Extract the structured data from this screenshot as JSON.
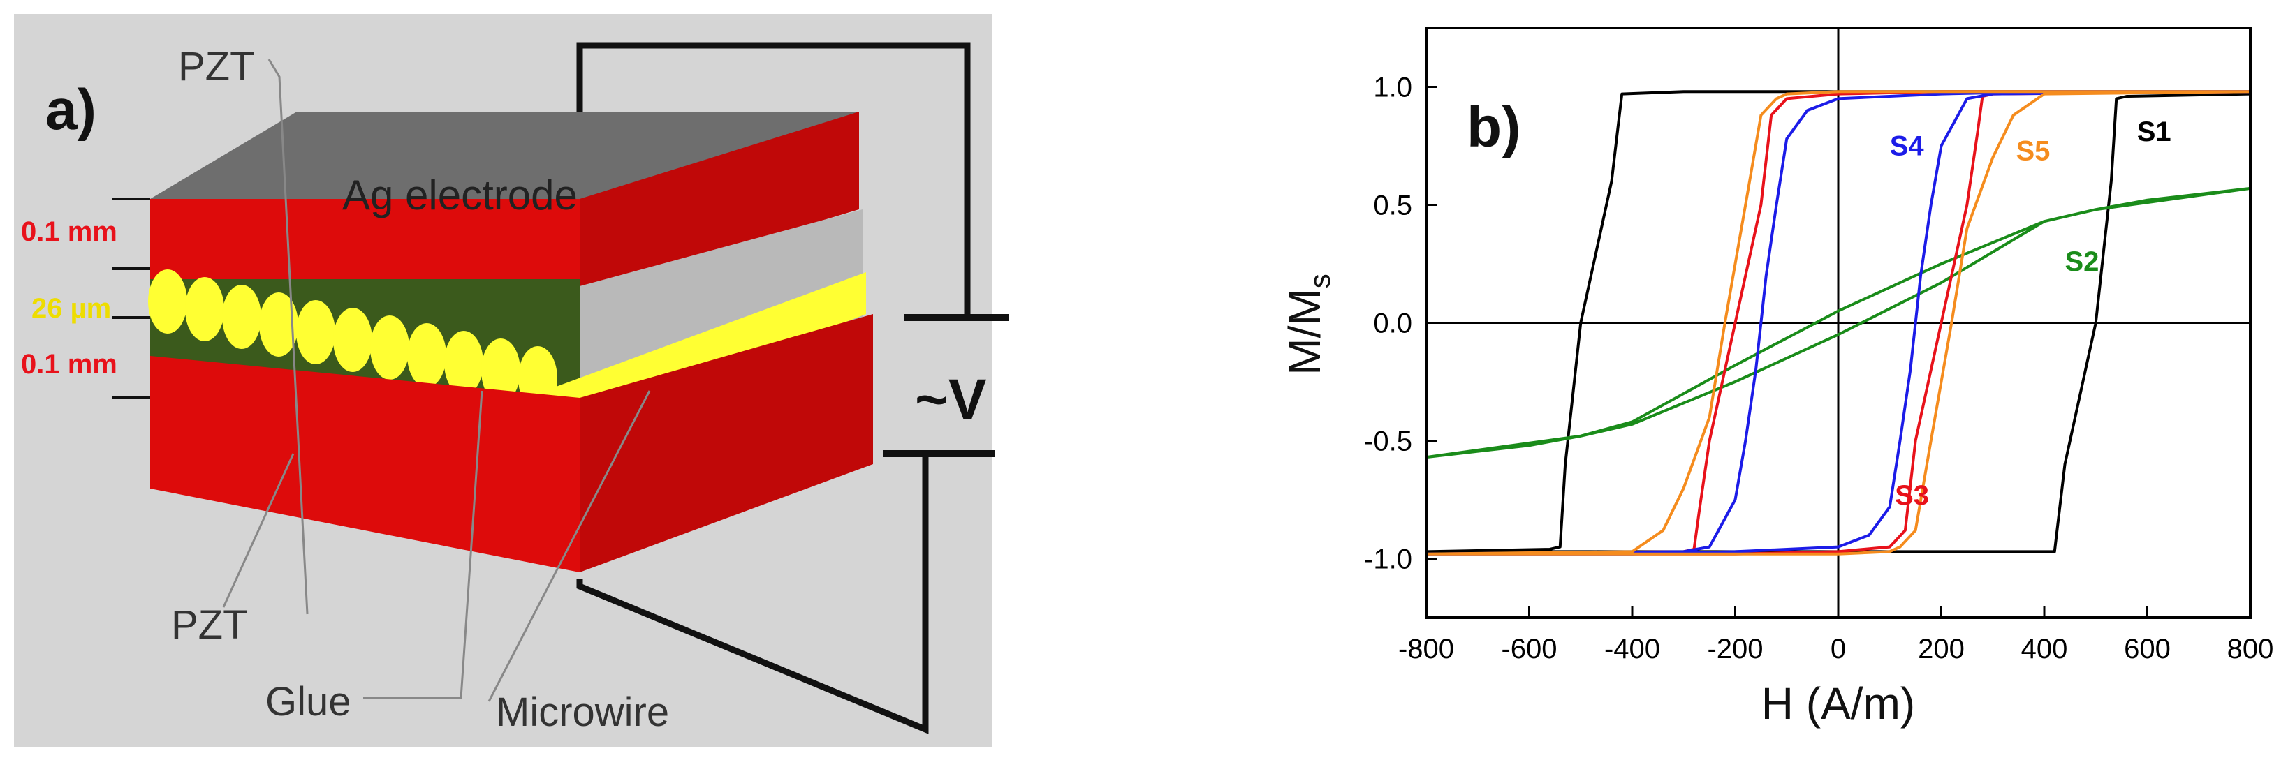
{
  "panel_a": {
    "label": "a)",
    "top_layer": "PZT",
    "bottom_layer": "PZT",
    "electrode": "Ag electrode",
    "glue": "Glue",
    "microwire": "Microwire",
    "voltage": "~V",
    "thickness_top": "0.1 mm",
    "thickness_mid": "26 µm",
    "thickness_bottom": "0.1 mm",
    "colors": {
      "pzt": "#dd0b0b",
      "electrode": "#6e6e6e",
      "wire": "#ffff33",
      "glue": "#3b5a1c",
      "background": "#d3d3d3"
    }
  },
  "panel_b": {
    "label": "b)",
    "chart_data": {
      "type": "line",
      "xlabel": "H (A/m)",
      "ylabel_main": "M/M",
      "ylabel_sub": "s",
      "xlim": [
        -800,
        800
      ],
      "ylim": [
        -1.25,
        1.25
      ],
      "xticks": [
        "-800",
        "-600",
        "-400",
        "-200",
        "0",
        "200",
        "400",
        "600",
        "800"
      ],
      "yticks": [
        "-1.0",
        "-0.5",
        "0.0",
        "0.5",
        "1.0"
      ],
      "xtick_values": [
        -800,
        -600,
        -400,
        -200,
        0,
        200,
        400,
        600,
        800
      ],
      "ytick_values": [
        -1.0,
        -0.5,
        0.0,
        0.5,
        1.0
      ],
      "series": [
        {
          "name": "S1",
          "color": "#000000",
          "x": [
            -800,
            -560,
            -540,
            -530,
            -500,
            -440,
            -420,
            -300,
            0,
            540,
            800,
            800,
            560,
            540,
            530,
            500,
            440,
            420,
            300,
            0,
            -540,
            -800
          ],
          "y": [
            -0.97,
            -0.96,
            -0.95,
            -0.6,
            0.0,
            0.6,
            0.97,
            0.98,
            0.98,
            0.98,
            0.98,
            0.97,
            0.96,
            0.95,
            0.6,
            0.0,
            -0.6,
            -0.97,
            -0.97,
            -0.97,
            -0.97,
            -0.97
          ]
        },
        {
          "name": "S2",
          "color": "#1a8c1a",
          "x": [
            -800,
            -600,
            -500,
            -400,
            -200,
            0,
            200,
            400,
            500,
            600,
            800,
            800,
            600,
            500,
            400,
            200,
            0,
            -200,
            -400,
            -500,
            -600,
            -800
          ],
          "y": [
            -0.57,
            -0.51,
            -0.48,
            -0.42,
            -0.18,
            0.05,
            0.25,
            0.43,
            0.48,
            0.52,
            0.57,
            0.57,
            0.51,
            0.48,
            0.43,
            0.17,
            -0.05,
            -0.25,
            -0.43,
            -0.48,
            -0.52,
            -0.57
          ]
        },
        {
          "name": "S3",
          "color": "#e8121b",
          "x": [
            -800,
            -300,
            -280,
            -270,
            -250,
            -200,
            -150,
            -130,
            -100,
            0,
            200,
            800,
            800,
            300,
            280,
            270,
            250,
            200,
            150,
            130,
            100,
            0,
            -200,
            -800
          ],
          "y": [
            -0.98,
            -0.97,
            -0.96,
            -0.8,
            -0.5,
            0.0,
            0.5,
            0.88,
            0.95,
            0.97,
            0.98,
            0.98,
            0.98,
            0.97,
            0.96,
            0.8,
            0.5,
            0.0,
            -0.5,
            -0.88,
            -0.95,
            -0.97,
            -0.98,
            -0.98
          ]
        },
        {
          "name": "S4",
          "color": "#1c1ce8",
          "x": [
            -800,
            -300,
            -250,
            -200,
            -180,
            -160,
            -140,
            -120,
            -100,
            -60,
            0,
            200,
            400,
            800,
            800,
            300,
            250,
            200,
            180,
            160,
            140,
            120,
            100,
            60,
            0,
            -200,
            -400,
            -800
          ],
          "y": [
            -0.98,
            -0.97,
            -0.95,
            -0.75,
            -0.5,
            -0.2,
            0.2,
            0.5,
            0.78,
            0.9,
            0.95,
            0.97,
            0.98,
            0.98,
            0.98,
            0.97,
            0.95,
            0.75,
            0.5,
            0.2,
            -0.2,
            -0.5,
            -0.78,
            -0.9,
            -0.95,
            -0.97,
            -0.98,
            -0.98
          ]
        },
        {
          "name": "S5",
          "color": "#f58c1e",
          "x": [
            -800,
            -400,
            -340,
            -300,
            -250,
            -220,
            -180,
            -150,
            -120,
            -100,
            0,
            200,
            300,
            400,
            800,
            800,
            400,
            340,
            300,
            250,
            220,
            180,
            150,
            120,
            100,
            0,
            -200,
            -300,
            -400,
            -800
          ],
          "y": [
            -0.98,
            -0.97,
            -0.88,
            -0.7,
            -0.4,
            0.0,
            0.5,
            0.88,
            0.95,
            0.97,
            0.98,
            0.98,
            0.98,
            0.98,
            0.98,
            0.98,
            0.97,
            0.88,
            0.7,
            0.4,
            0.0,
            -0.5,
            -0.88,
            -0.95,
            -0.97,
            -0.98,
            -0.98,
            -0.98,
            -0.98,
            -0.98
          ]
        }
      ],
      "annotations": [
        {
          "text": "S1",
          "x": 580,
          "y": 0.77,
          "color": "#000000"
        },
        {
          "text": "S2",
          "x": 440,
          "y": 0.22,
          "color": "#1a8c1a"
        },
        {
          "text": "S3",
          "x": 110,
          "y": -0.77,
          "color": "#e8121b"
        },
        {
          "text": "S4",
          "x": 100,
          "y": 0.71,
          "color": "#1c1ce8"
        },
        {
          "text": "S5",
          "x": 345,
          "y": 0.69,
          "color": "#f58c1e"
        }
      ]
    }
  }
}
